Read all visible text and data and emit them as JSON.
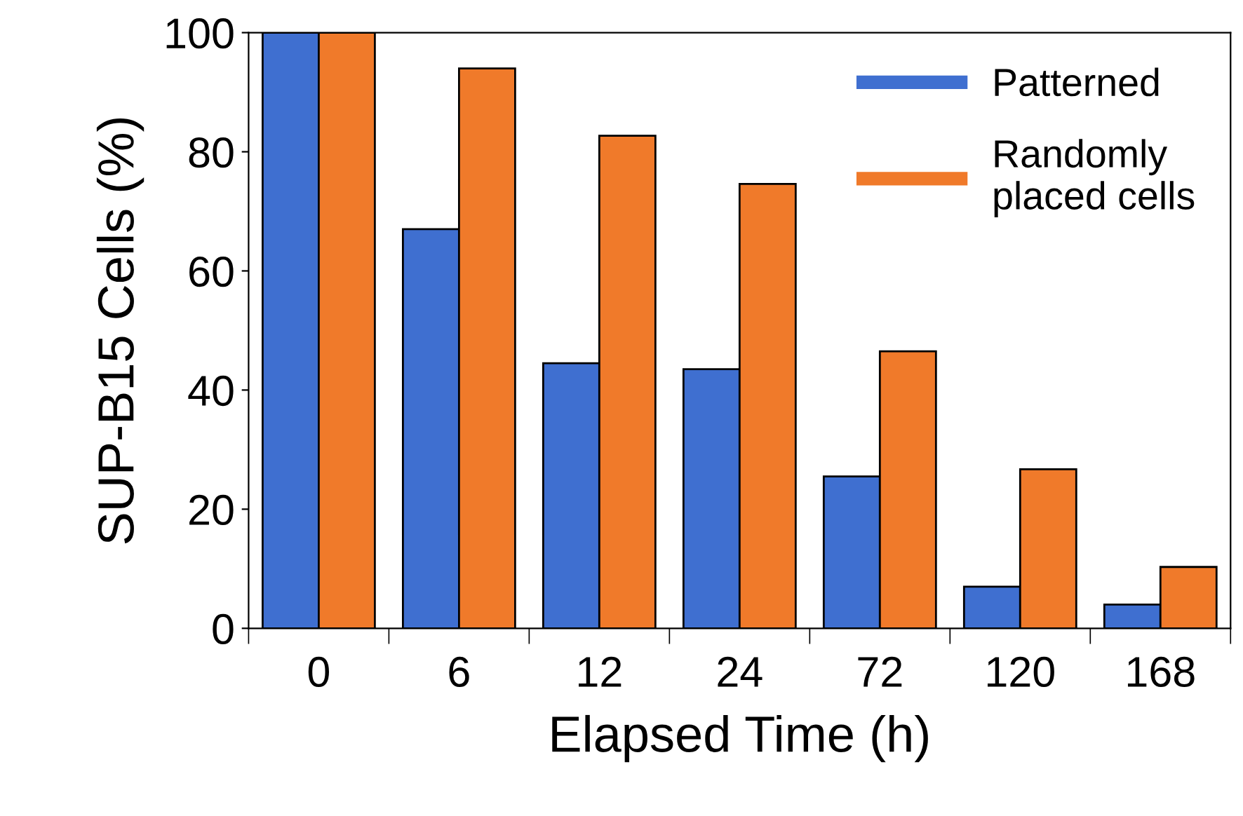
{
  "chart_data": {
    "type": "bar",
    "xlabel": "Elapsed Time (h)",
    "ylabel": "SUP-B15 Cells (%)",
    "categories": [
      "0",
      "6",
      "12",
      "24",
      "72",
      "120",
      "168"
    ],
    "series": [
      {
        "name": "Patterned",
        "color": "#3f6fd0",
        "values": [
          100,
          67,
          44.5,
          43.5,
          25.5,
          7,
          4
        ]
      },
      {
        "name": "Randomly\nplaced cells",
        "color": "#f07a2a",
        "values": [
          100,
          94,
          82.7,
          74.6,
          46.5,
          26.7,
          10.3
        ]
      }
    ],
    "ylim": [
      0,
      100
    ],
    "yticks": [
      0,
      20,
      40,
      60,
      80,
      100
    ],
    "grid": false,
    "legend": "top right"
  }
}
